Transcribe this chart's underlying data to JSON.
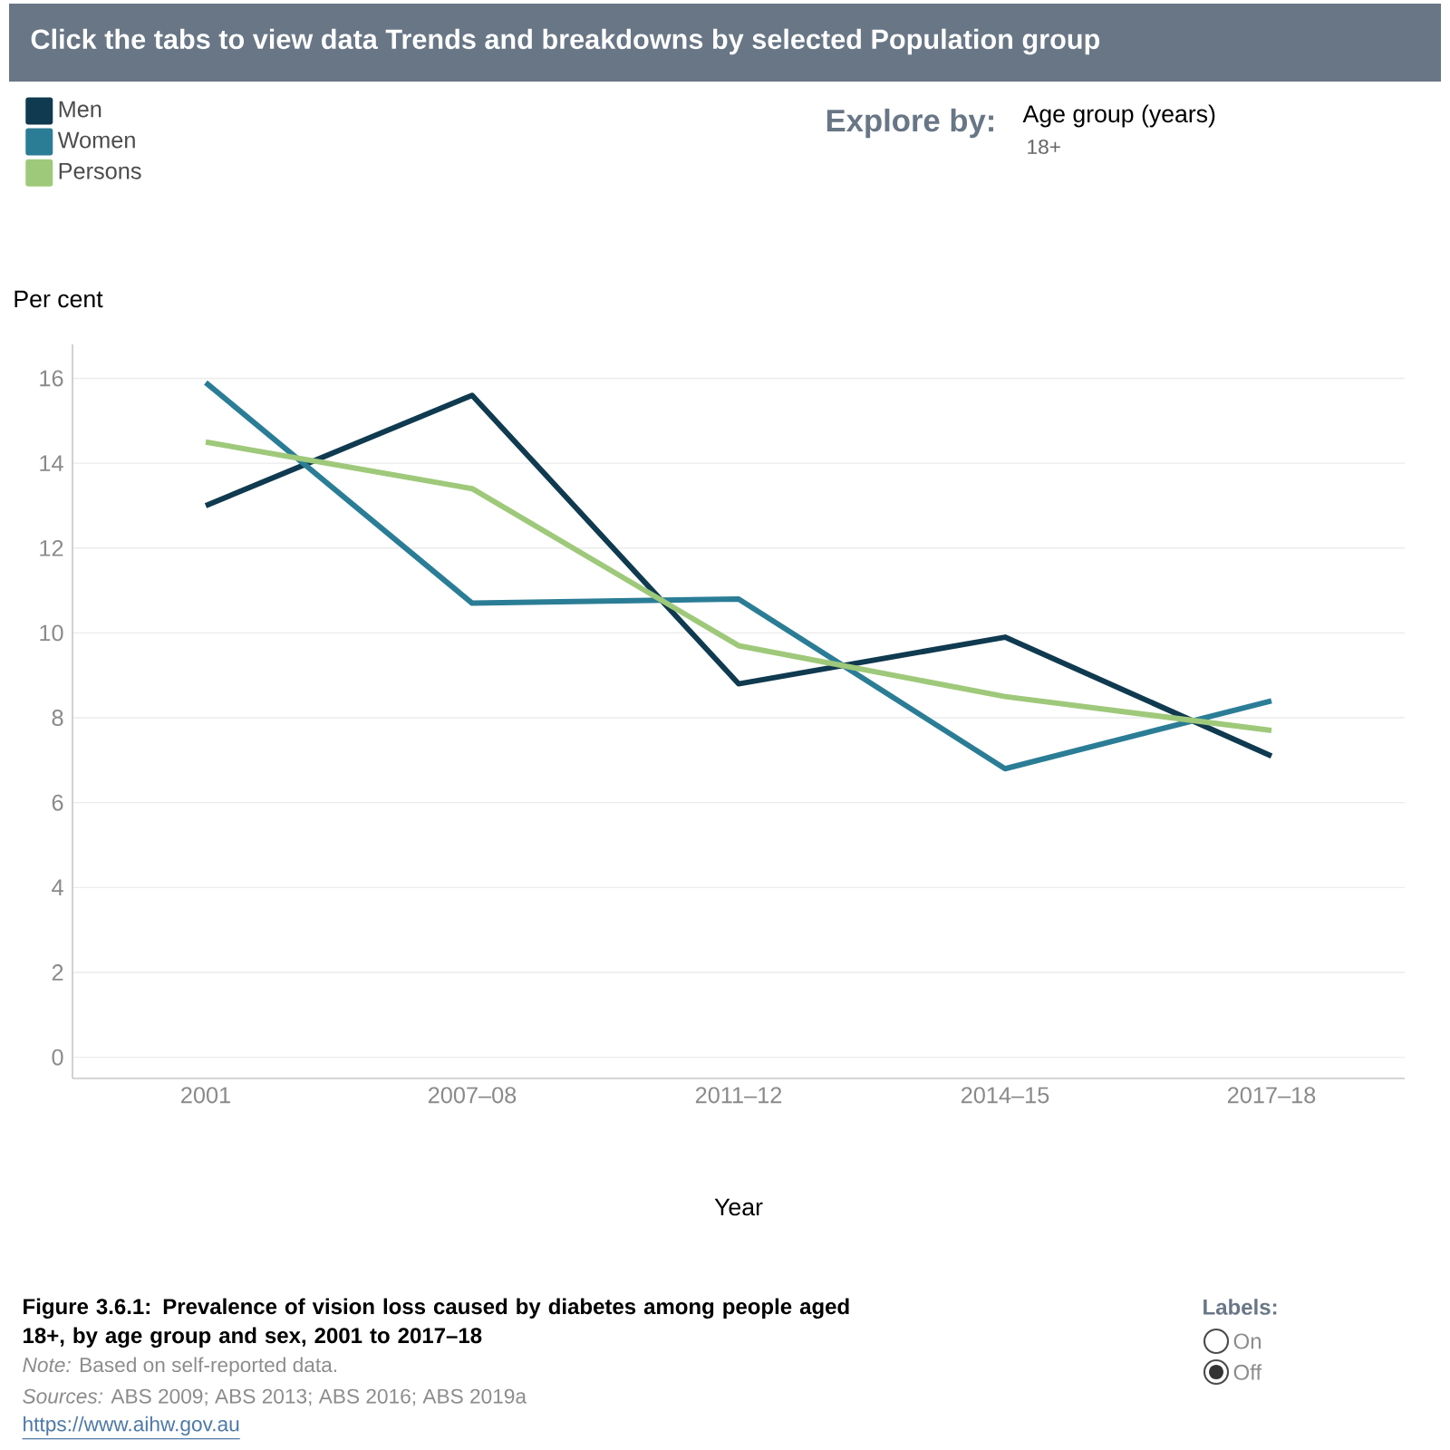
{
  "chart_data": {
    "type": "line",
    "title": "Click the tabs to view data Trends and breakdowns by selected Population group",
    "xlabel": "Year",
    "ylabel": "Per cent",
    "categories": [
      "2001",
      "2007–08",
      "2011–12",
      "2014–15",
      "2017–18"
    ],
    "series": [
      {
        "name": "Men",
        "color": "#0f3a4f",
        "values": [
          13.0,
          15.6,
          8.8,
          9.9,
          7.1
        ]
      },
      {
        "name": "Women",
        "color": "#2b7d96",
        "values": [
          15.9,
          10.7,
          10.8,
          6.8,
          8.4
        ]
      },
      {
        "name": "Persons",
        "color": "#9fc97a",
        "values": [
          14.5,
          13.4,
          9.7,
          8.5,
          7.7
        ]
      }
    ],
    "ylim": [
      -0.5,
      16.8
    ],
    "yticks": [
      0,
      2,
      4,
      6,
      8,
      10,
      12,
      14,
      16
    ],
    "grid": "y",
    "legend": "top left",
    "marker": "none",
    "line_style": "solid",
    "annotations": [
      "Explore by:",
      "Age group (years)",
      "18+",
      "Figure 3.6.1: Prevalence of vision loss caused by diabetes among people aged 18+, by age group and sex, 2001 to 2017–18",
      "*Note:* Based on self-reported data.",
      "*Sources:* ABS 2009; ABS 2013; ABS 2016; ABS 2019a",
      "https://www.aihw.gov.au",
      "Labels:",
      "On",
      "Off"
    ]
  }
}
